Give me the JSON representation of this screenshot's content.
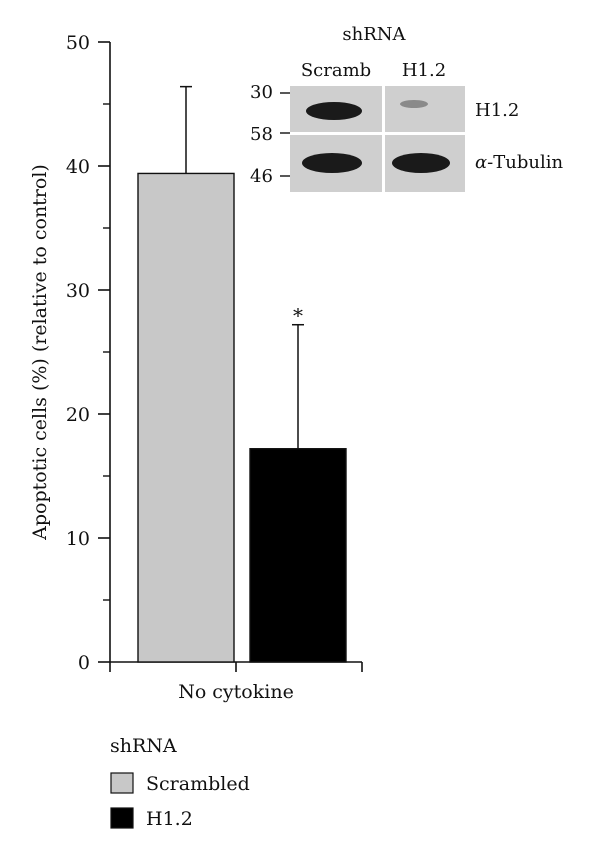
{
  "chart_data": {
    "type": "bar",
    "ylabel": "Apoptotic cells (%) (relative to control)",
    "ylim": [
      0,
      50
    ],
    "y_ticks": [
      0,
      10,
      20,
      30,
      40,
      50
    ],
    "categories": [
      "No cytokine"
    ],
    "series": [
      {
        "name": "Scrambled",
        "values": [
          39.4
        ],
        "error": [
          7.0
        ],
        "color": "#c8c8c8"
      },
      {
        "name": "H1.2",
        "values": [
          17.2
        ],
        "error": [
          10.0
        ],
        "color": "#000000",
        "significance": "*"
      }
    ],
    "legend": {
      "title": "shRNA",
      "position": "bottom-left"
    }
  },
  "blot": {
    "title": "shRNA",
    "lanes": [
      "Scramb",
      "H1.2"
    ],
    "markers": [
      "30",
      "58",
      "46"
    ],
    "bands": [
      "H1.2",
      "α-Tubulin"
    ]
  }
}
